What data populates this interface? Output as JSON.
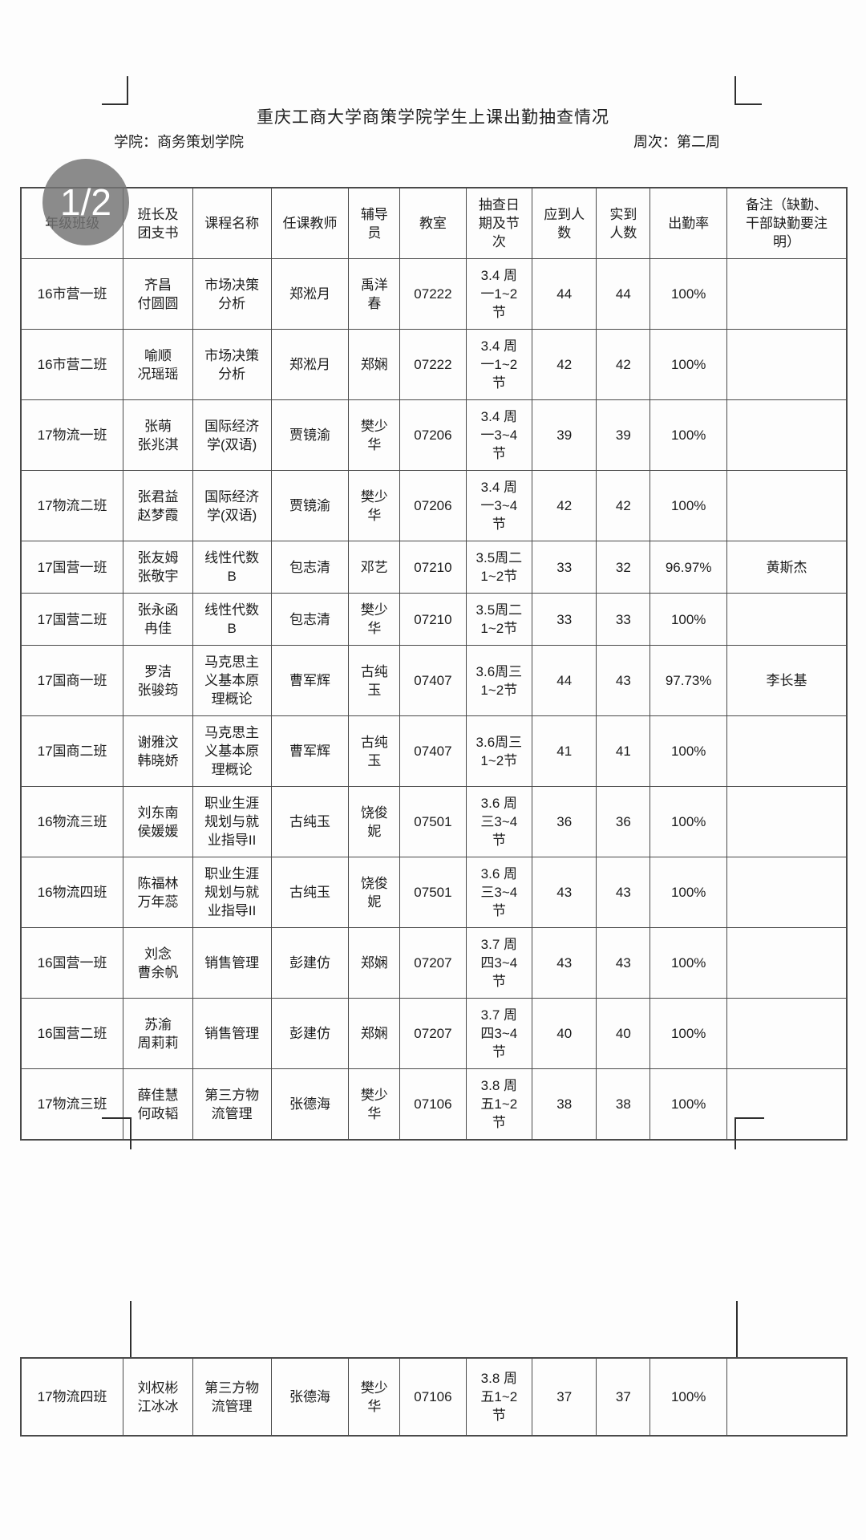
{
  "page_badge": "1/2",
  "title": "重庆工商大学商策学院学生上课出勤抽查情况",
  "meta": {
    "college_label": "学院：商务策划学院",
    "week_label": "周次：第二周"
  },
  "colors": {
    "badge_bg": "#747474",
    "border": "#4a4a4a",
    "text": "#1c1c1c",
    "paper": "#fdfdfd"
  },
  "table": {
    "header": [
      [
        "年级班级"
      ],
      [
        "班长及",
        "团支书"
      ],
      [
        "课程名称"
      ],
      [
        "任课教师"
      ],
      [
        "辅导",
        "员"
      ],
      [
        "教室"
      ],
      [
        "抽查日",
        "期及节",
        "次"
      ],
      [
        "应到人",
        "数"
      ],
      [
        "实到",
        "人数"
      ],
      [
        "出勤率"
      ],
      [
        "备注（缺勤、",
        "干部缺勤要注",
        "明）"
      ]
    ],
    "rows": [
      [
        [
          "16市营一班"
        ],
        [
          "齐昌",
          "付圆圆"
        ],
        [
          "市场决策",
          "分析"
        ],
        [
          "郑淞月"
        ],
        [
          "禹洋",
          "春"
        ],
        [
          "07222"
        ],
        [
          "3.4 周",
          "一1~2",
          "节"
        ],
        [
          "44"
        ],
        [
          "44"
        ],
        [
          "100%"
        ],
        [
          ""
        ]
      ],
      [
        [
          "16市营二班"
        ],
        [
          "喻顺",
          "况瑶瑶"
        ],
        [
          "市场决策",
          "分析"
        ],
        [
          "郑淞月"
        ],
        [
          "郑娴"
        ],
        [
          "07222"
        ],
        [
          "3.4 周",
          "一1~2",
          "节"
        ],
        [
          "42"
        ],
        [
          "42"
        ],
        [
          "100%"
        ],
        [
          ""
        ]
      ],
      [
        [
          "17物流一班"
        ],
        [
          "张萌",
          "张兆淇"
        ],
        [
          "国际经济",
          "学(双语)"
        ],
        [
          "贾镜渝"
        ],
        [
          "樊少",
          "华"
        ],
        [
          "07206"
        ],
        [
          "3.4 周",
          "一3~4",
          "节"
        ],
        [
          "39"
        ],
        [
          "39"
        ],
        [
          "100%"
        ],
        [
          ""
        ]
      ],
      [
        [
          "17物流二班"
        ],
        [
          "张君益",
          "赵梦霞"
        ],
        [
          "国际经济",
          "学(双语)"
        ],
        [
          "贾镜渝"
        ],
        [
          "樊少",
          "华"
        ],
        [
          "07206"
        ],
        [
          "3.4 周",
          "一3~4",
          "节"
        ],
        [
          "42"
        ],
        [
          "42"
        ],
        [
          "100%"
        ],
        [
          ""
        ]
      ],
      [
        [
          "17国营一班"
        ],
        [
          "张友姆",
          "张敬宇"
        ],
        [
          "线性代数",
          "B"
        ],
        [
          "包志清"
        ],
        [
          "邓艺"
        ],
        [
          "07210"
        ],
        [
          "3.5周二",
          "1~2节"
        ],
        [
          "33"
        ],
        [
          "32"
        ],
        [
          "96.97%"
        ],
        [
          "黄斯杰"
        ]
      ],
      [
        [
          "17国营二班"
        ],
        [
          "张永函",
          "冉佳"
        ],
        [
          "线性代数",
          "B"
        ],
        [
          "包志清"
        ],
        [
          "樊少",
          "华"
        ],
        [
          "07210"
        ],
        [
          "3.5周二",
          "1~2节"
        ],
        [
          "33"
        ],
        [
          "33"
        ],
        [
          "100%"
        ],
        [
          ""
        ]
      ],
      [
        [
          "17国商一班"
        ],
        [
          "罗洁",
          "张骏筠"
        ],
        [
          "马克思主",
          "义基本原",
          "理概论"
        ],
        [
          "曹军辉"
        ],
        [
          "古纯",
          "玉"
        ],
        [
          "07407"
        ],
        [
          "3.6周三",
          "1~2节"
        ],
        [
          "44"
        ],
        [
          "43"
        ],
        [
          "97.73%"
        ],
        [
          "李长基"
        ]
      ],
      [
        [
          "17国商二班"
        ],
        [
          "谢雅汶",
          "韩晓娇"
        ],
        [
          "马克思主",
          "义基本原",
          "理概论"
        ],
        [
          "曹军辉"
        ],
        [
          "古纯",
          "玉"
        ],
        [
          "07407"
        ],
        [
          "3.6周三",
          "1~2节"
        ],
        [
          "41"
        ],
        [
          "41"
        ],
        [
          "100%"
        ],
        [
          ""
        ]
      ],
      [
        [
          "16物流三班"
        ],
        [
          "刘东南",
          "侯媛媛"
        ],
        [
          "职业生涯",
          "规划与就",
          "业指导II"
        ],
        [
          "古纯玉"
        ],
        [
          "饶俊",
          "妮"
        ],
        [
          "07501"
        ],
        [
          "3.6 周",
          "三3~4",
          "节"
        ],
        [
          "36"
        ],
        [
          "36"
        ],
        [
          "100%"
        ],
        [
          ""
        ]
      ],
      [
        [
          "16物流四班"
        ],
        [
          "陈福林",
          "万年蕊"
        ],
        [
          "职业生涯",
          "规划与就",
          "业指导II"
        ],
        [
          "古纯玉"
        ],
        [
          "饶俊",
          "妮"
        ],
        [
          "07501"
        ],
        [
          "3.6 周",
          "三3~4",
          "节"
        ],
        [
          "43"
        ],
        [
          "43"
        ],
        [
          "100%"
        ],
        [
          ""
        ]
      ],
      [
        [
          "16国营一班"
        ],
        [
          "刘念",
          "曹余帆"
        ],
        [
          "销售管理"
        ],
        [
          "彭建仿"
        ],
        [
          "郑娴"
        ],
        [
          "07207"
        ],
        [
          "3.7 周",
          "四3~4",
          "节"
        ],
        [
          "43"
        ],
        [
          "43"
        ],
        [
          "100%"
        ],
        [
          ""
        ]
      ],
      [
        [
          "16国营二班"
        ],
        [
          "苏渝",
          "周莉莉"
        ],
        [
          "销售管理"
        ],
        [
          "彭建仿"
        ],
        [
          "郑娴"
        ],
        [
          "07207"
        ],
        [
          "3.7 周",
          "四3~4",
          "节"
        ],
        [
          "40"
        ],
        [
          "40"
        ],
        [
          "100%"
        ],
        [
          ""
        ]
      ],
      [
        [
          "17物流三班"
        ],
        [
          "薛佳慧",
          "何政韬"
        ],
        [
          "第三方物",
          "流管理"
        ],
        [
          "张德海"
        ],
        [
          "樊少",
          "华"
        ],
        [
          "07106"
        ],
        [
          "3.8 周",
          "五1~2",
          "节"
        ],
        [
          "38"
        ],
        [
          "38"
        ],
        [
          "100%"
        ],
        [
          ""
        ]
      ]
    ]
  },
  "table_page2": {
    "rows": [
      [
        [
          "17物流四班"
        ],
        [
          "刘权彬",
          "江冰冰"
        ],
        [
          "第三方物",
          "流管理"
        ],
        [
          "张德海"
        ],
        [
          "樊少",
          "华"
        ],
        [
          "07106"
        ],
        [
          "3.8 周",
          "五1~2",
          "节"
        ],
        [
          "37"
        ],
        [
          "37"
        ],
        [
          "100%"
        ],
        [
          ""
        ]
      ]
    ]
  }
}
